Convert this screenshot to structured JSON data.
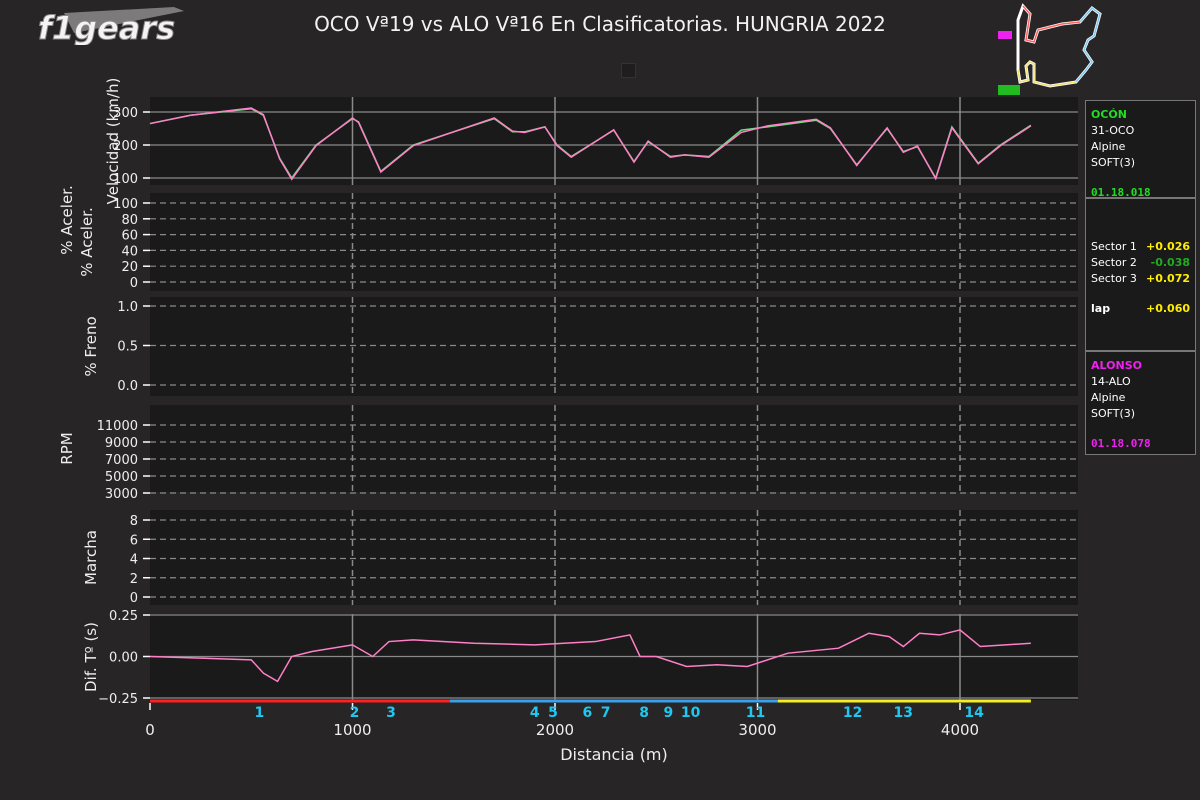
{
  "header": {
    "logo_text": "f1gears",
    "title": "OCO Vª19 vs ALO Vª16 En Clasificatorias. HUNGRIA 2022"
  },
  "track_map": {
    "circuit": "Hungaroring",
    "sector_colors": [
      "#ff3030",
      "#3aa0e0",
      "#f0e040"
    ]
  },
  "drivers": [
    {
      "label": "OCÓN",
      "code": "31-OCO",
      "team": "Alpine",
      "tyre": "SOFT(3)",
      "lap_time": "01.18.018",
      "color": "#22dd22"
    },
    {
      "label": "ALONSO",
      "code": "14-ALO",
      "team": "Alpine",
      "tyre": "SOFT(3)",
      "lap_time": "01.18.078",
      "color": "#ee22ee"
    }
  ],
  "deltas": {
    "sectors": [
      {
        "label": "Sector 1",
        "value": "+0.026",
        "color": "#ffee00"
      },
      {
        "label": "Sector 2",
        "value": "-0.038",
        "color": "#22aa22"
      },
      {
        "label": "Sector 3",
        "value": "+0.072",
        "color": "#ffee00"
      }
    ],
    "lap": {
      "label": "lap",
      "value": "+0.060",
      "color": "#ffee00"
    }
  },
  "chart_data": {
    "type": "line",
    "title": "OCO Vª19 vs ALO Vª16 En Clasificatorias. HUNGRIA 2022",
    "xlabel": "Distancia (m)",
    "xlim": [
      0,
      4600
    ],
    "x_ticks": [
      0,
      1000,
      2000,
      3000,
      4000
    ],
    "series_names": [
      "OCO",
      "ALO"
    ],
    "series_colors": [
      "#66e07a",
      "#ff7fc8"
    ],
    "corners": [
      {
        "n": "1",
        "x": 540
      },
      {
        "n": "2",
        "x": 1010
      },
      {
        "n": "3",
        "x": 1190
      },
      {
        "n": "4",
        "x": 1900
      },
      {
        "n": "5",
        "x": 1990
      },
      {
        "n": "6",
        "x": 2160
      },
      {
        "n": "7",
        "x": 2250
      },
      {
        "n": "8",
        "x": 2440
      },
      {
        "n": "9",
        "x": 2560
      },
      {
        "n": "10",
        "x": 2670
      },
      {
        "n": "11",
        "x": 2990
      },
      {
        "n": "12",
        "x": 3470
      },
      {
        "n": "13",
        "x": 3720
      },
      {
        "n": "14",
        "x": 4070
      }
    ],
    "sectors": [
      {
        "from": 0,
        "to": 1480,
        "color": "#ff2020"
      },
      {
        "from": 1480,
        "to": 3100,
        "color": "#3aa0e8"
      },
      {
        "from": 3100,
        "to": 4350,
        "color": "#f5ee20"
      }
    ],
    "panels": [
      {
        "ylabel": "Velocidad (km/h)",
        "ylim": [
          70,
          330
        ],
        "yticks": [
          "100",
          "200",
          "300"
        ],
        "x": [
          0,
          200,
          500,
          560,
          640,
          700,
          820,
          1000,
          1030,
          1140,
          1300,
          1700,
          1790,
          1850,
          1950,
          2010,
          2080,
          2290,
          2390,
          2460,
          2570,
          2640,
          2760,
          2920,
          3050,
          3290,
          3360,
          3490,
          3640,
          3720,
          3790,
          3880,
          3960,
          4090,
          4200,
          4350
        ],
        "series": [
          {
            "name": "OCO",
            "values": [
              265,
              290,
              310,
              290,
              160,
              100,
              200,
              280,
              270,
              120,
              200,
              280,
              240,
              240,
              255,
              200,
              165,
              245,
              150,
              210,
              165,
              170,
              165,
              245,
              255,
              275,
              250,
              140,
              250,
              180,
              195,
              100,
              255,
              145,
              200,
              260
            ]
          },
          {
            "name": "ALO",
            "values": [
              265,
              290,
              312,
              292,
              158,
              96,
              198,
              282,
              268,
              118,
              198,
              282,
              242,
              238,
              255,
              198,
              163,
              246,
              148,
              212,
              163,
              170,
              163,
              238,
              258,
              278,
              252,
              138,
              252,
              178,
              197,
              98,
              252,
              143,
              198,
              258
            ]
          }
        ]
      },
      {
        "ylabel": "% Aceler.",
        "ylim": [
          0,
          100
        ],
        "yticks": [
          "0",
          "20",
          "40",
          "60",
          "80",
          "100"
        ]
      },
      {
        "ylabel": "% Freno",
        "ylim": [
          0,
          1
        ],
        "yticks": [
          "0.0",
          "0.5",
          "1.0"
        ]
      },
      {
        "ylabel": "RPM",
        "ylim": [
          3000,
          12000
        ],
        "yticks": [
          "3000",
          "5000",
          "7000",
          "9000",
          "11000"
        ]
      },
      {
        "ylabel": "Marcha",
        "ylim": [
          0,
          8
        ],
        "yticks": [
          "0",
          "2",
          "4",
          "6",
          "8"
        ]
      },
      {
        "ylabel": "Dif. Tº (s)",
        "ylim": [
          -0.25,
          0.25
        ],
        "yticks": [
          "−0.25",
          "0.00",
          "0.25"
        ],
        "x": [
          0,
          250,
          500,
          560,
          630,
          700,
          800,
          1000,
          1100,
          1180,
          1300,
          1600,
          1900,
          2200,
          2370,
          2420,
          2500,
          2650,
          2800,
          2950,
          3150,
          3400,
          3550,
          3650,
          3720,
          3800,
          3900,
          4000,
          4100,
          4350
        ],
        "series": [
          {
            "name": "Delta",
            "values": [
              0.0,
              -0.01,
              -0.02,
              -0.1,
              -0.15,
              -0.0,
              0.03,
              0.07,
              0.0,
              0.09,
              0.1,
              0.08,
              0.07,
              0.09,
              0.13,
              0.0,
              -0.0,
              -0.06,
              -0.05,
              -0.06,
              0.02,
              0.05,
              0.14,
              0.12,
              0.06,
              0.14,
              0.13,
              0.16,
              0.06,
              0.08
            ]
          }
        ]
      }
    ]
  }
}
